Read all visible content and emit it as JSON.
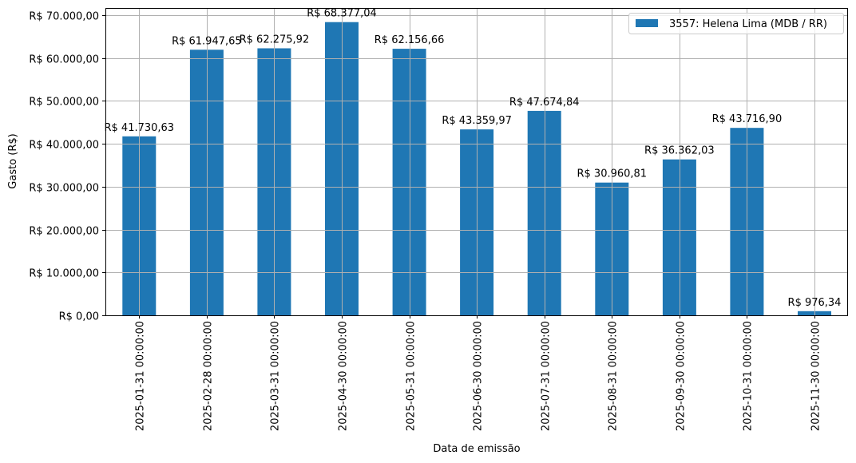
{
  "chart_data": {
    "type": "bar",
    "title": "",
    "xlabel": "Data de emissão",
    "ylabel": "Gasto (R$)",
    "categories": [
      "2025-01-31 00:00:00",
      "2025-02-28 00:00:00",
      "2025-03-31 00:00:00",
      "2025-04-30 00:00:00",
      "2025-05-31 00:00:00",
      "2025-06-30 00:00:00",
      "2025-07-31 00:00:00",
      "2025-08-31 00:00:00",
      "2025-09-30 00:00:00",
      "2025-10-31 00:00:00",
      "2025-11-30 00:00:00"
    ],
    "series": [
      {
        "name": "3557: Helena Lima (MDB / RR)",
        "color": "#1f77b4",
        "values": [
          41730.63,
          61947.65,
          62275.92,
          68377.04,
          62156.66,
          43359.97,
          47674.84,
          30960.81,
          36362.03,
          43716.9,
          976.34
        ],
        "labels": [
          "R$ 41.730,63",
          "R$ 61.947,65",
          "R$ 62.275,92",
          "R$ 68.377,04",
          "R$ 62.156,66",
          "R$ 43.359,97",
          "R$ 47.674,84",
          "R$ 30.960,81",
          "R$ 36.362,03",
          "R$ 43.716,90",
          "R$ 976,34"
        ]
      }
    ],
    "yticks": [
      0,
      10000,
      20000,
      30000,
      40000,
      50000,
      60000,
      70000
    ],
    "ytick_labels": [
      "R$ 0,00",
      "R$ 10.000,00",
      "R$ 20.000,00",
      "R$ 30.000,00",
      "R$ 40.000,00",
      "R$ 50.000,00",
      "R$ 60.000,00",
      "R$ 70.000,00"
    ],
    "ylim": [
      0,
      71800
    ],
    "grid": true,
    "legend_position": "upper right"
  }
}
